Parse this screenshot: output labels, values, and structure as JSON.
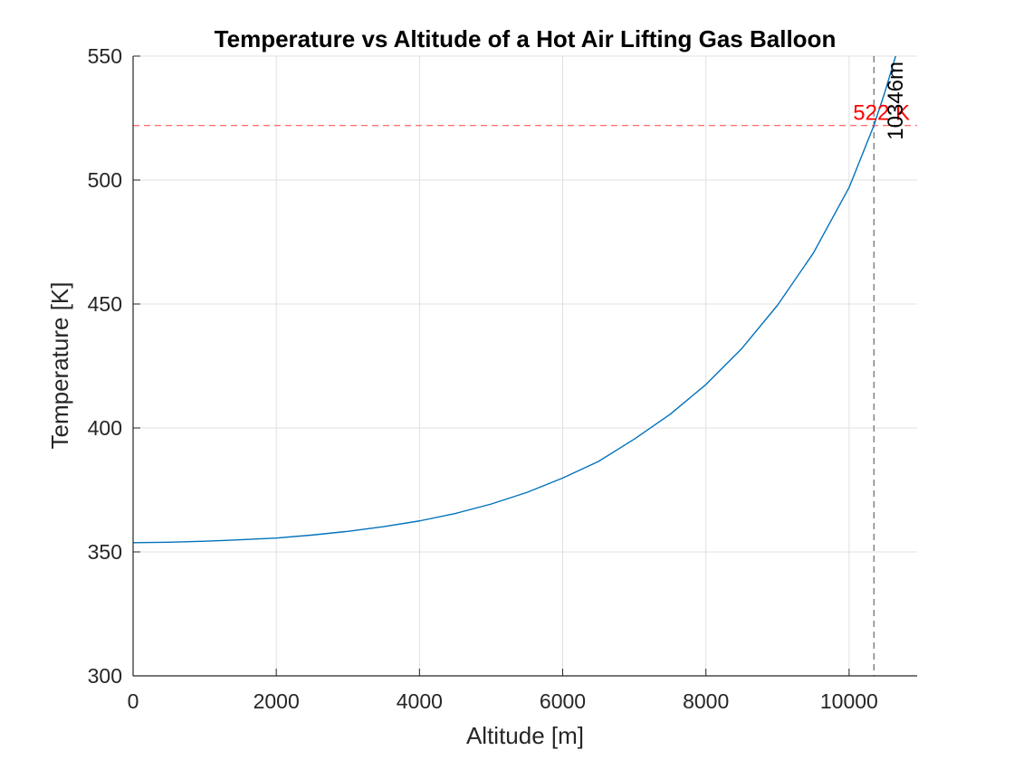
{
  "chart_data": {
    "type": "line",
    "title": "Temperature vs Altitude of a Hot Air Lifting Gas Balloon",
    "xlabel": "Altitude [m]",
    "ylabel": "Temperature [K]",
    "xlim": [
      0,
      10950
    ],
    "ylim": [
      300,
      550
    ],
    "xticks": [
      0,
      2000,
      4000,
      6000,
      8000,
      10000
    ],
    "yticks": [
      300,
      350,
      400,
      450,
      500,
      550
    ],
    "grid": true,
    "series": [
      {
        "color": "#0072BD",
        "x": [
          0,
          500,
          1000,
          1500,
          2000,
          2500,
          3000,
          3500,
          4000,
          4500,
          5000,
          5500,
          6000,
          6500,
          7000,
          7500,
          8000,
          8500,
          9000,
          9500,
          10000,
          10346,
          10500,
          10650
        ],
        "y": [
          353.7,
          353.9,
          354.3,
          354.9,
          355.6,
          356.8,
          358.3,
          360.2,
          362.5,
          365.5,
          369.3,
          374.0,
          379.8,
          386.5,
          395.5,
          405.5,
          417.5,
          432.0,
          449.5,
          470.5,
          497.0,
          522,
          535.5,
          550
        ]
      }
    ],
    "annotations": [
      {
        "orientation": "horizontal",
        "value": 522,
        "label": "522 K",
        "color": "#FF0000",
        "line_style": "dashed"
      },
      {
        "orientation": "vertical",
        "value": 10346,
        "label": "10346m",
        "color": "#000000",
        "line_style": "dashed"
      }
    ]
  }
}
